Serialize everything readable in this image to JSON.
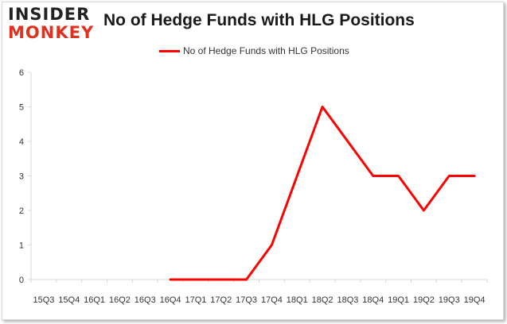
{
  "logo": {
    "line1": "INSIDER",
    "line2": "MONKEY"
  },
  "chart_data": {
    "type": "line",
    "title": "No of Hedge Funds with HLG Positions",
    "categories": [
      "15Q3",
      "15Q4",
      "16Q1",
      "16Q2",
      "16Q3",
      "16Q4",
      "17Q1",
      "17Q2",
      "17Q3",
      "17Q4",
      "18Q1",
      "18Q2",
      "18Q3",
      "18Q4",
      "19Q1",
      "19Q2",
      "19Q3",
      "19Q4"
    ],
    "series": [
      {
        "name": "No of Hedge Funds with HLG Positions",
        "values": [
          null,
          null,
          null,
          null,
          null,
          0,
          0,
          0,
          0,
          1,
          3,
          5,
          4,
          3,
          3,
          2,
          3,
          3
        ]
      }
    ],
    "ylim": [
      0,
      6
    ],
    "yticks": [
      0,
      1,
      2,
      3,
      4,
      5,
      6
    ],
    "grid": false,
    "legend": "top",
    "colors": {
      "series": "#ff0000",
      "axis": "#d9d9d9",
      "text": "#333333"
    }
  }
}
